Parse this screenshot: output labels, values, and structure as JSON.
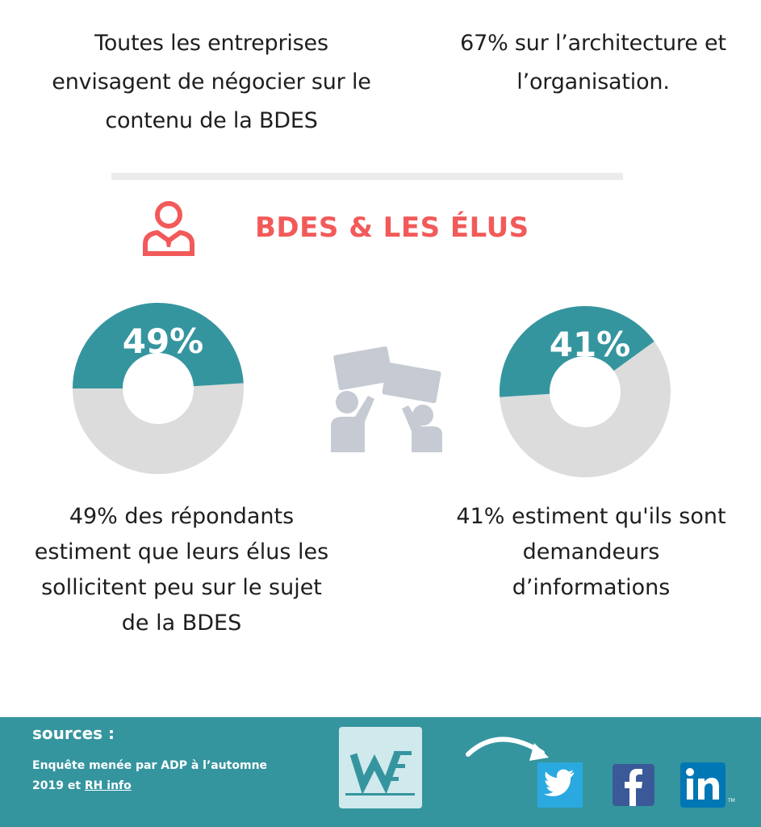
{
  "intro": {
    "left": "Toutes les entreprises envisagent de négocier sur le contenu de la BDES",
    "right": "67% sur l’architecture et l’organisation."
  },
  "section": {
    "title": "BDES & LES ÉLUS"
  },
  "stats": [
    {
      "value_label": "49%",
      "fraction": 0.49,
      "caption": "49% des répondants estiment que leurs élus les sollicitent peu sur le sujet de la BDES"
    },
    {
      "value_label": "41%",
      "fraction": 0.41,
      "caption": "41% estiment qu'ils sont demandeurs d’informations"
    }
  ],
  "colors": {
    "accent": "#f25a5a",
    "teal": "#35959f",
    "grey": "#dcdcdc",
    "icon_grey": "#c5cad3"
  },
  "icons": [
    "person-icon",
    "crowd-icon",
    "arrow-icon",
    "twitter-icon",
    "facebook-icon",
    "linkedin-icon",
    "logo"
  ],
  "footer": {
    "sources_title": "sources :",
    "sources_text": "Enquête menée par ADP à l’automne 2019 et",
    "link_label": "RH info",
    "tm": "TM"
  }
}
